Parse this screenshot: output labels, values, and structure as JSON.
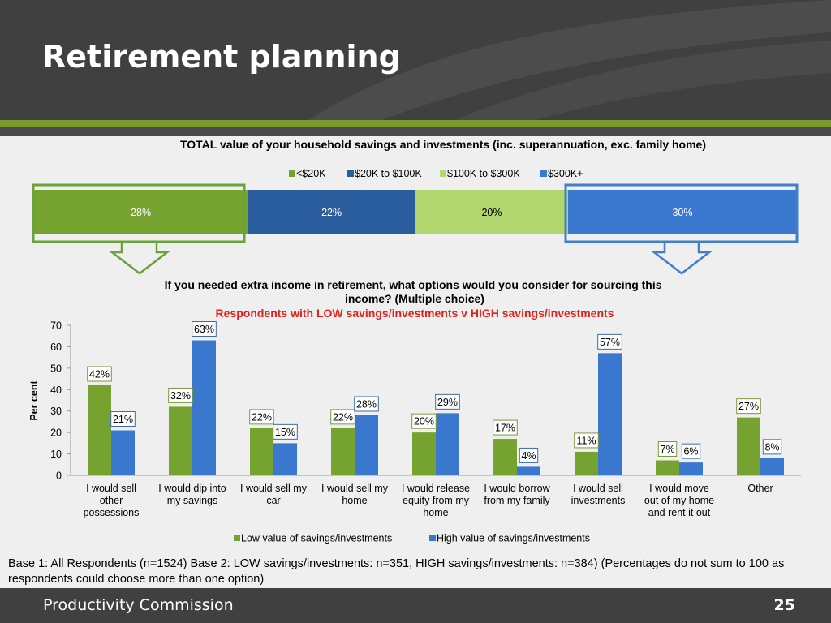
{
  "slide": {
    "title": "Retirement planning",
    "footer_left": "Productivity Commission",
    "page_number": "25",
    "base_note": "Base 1: All Respondents (n=1524)   Base 2: LOW savings/investments: n=351, HIGH savings/investments: n=384) (Percentages do not sum to 100 as respondents could choose more than one option)"
  },
  "colors": {
    "low": "#76a22f",
    "high": "#3a78d0",
    "dark_blue": "#2a5d9e",
    "light_green": "#b2d76e",
    "subtitle_red": "#e0201b"
  },
  "chart_data": [
    {
      "type": "bar",
      "stacked": true,
      "orientation": "horizontal",
      "title": "TOTAL value of your household savings and investments (inc. superannuation, exc. family home)",
      "legend_position": "top",
      "series": [
        {
          "name": "<$20K",
          "value": 28,
          "label": "28%",
          "color": "#76a22f"
        },
        {
          "name": "$20K to $100K",
          "value": 22,
          "label": "22%",
          "color": "#2a5d9e"
        },
        {
          "name": "$100K to $300K",
          "value": 20,
          "label": "20%",
          "color": "#b2d76e"
        },
        {
          "name": "$300K+",
          "value": 30,
          "label": "30%",
          "color": "#3a78d0"
        }
      ]
    },
    {
      "type": "bar",
      "title": "If you needed extra income in retirement, what options would you consider for sourcing this income? (Multiple choice)",
      "subtitle": "Respondents with LOW savings/investments v HIGH savings/investments",
      "ylabel": "Per cent",
      "ylim": [
        0,
        70
      ],
      "yticks": [
        0,
        10,
        20,
        30,
        40,
        50,
        60,
        70
      ],
      "legend_position": "bottom",
      "categories": [
        [
          "I would sell",
          "other",
          "possessions"
        ],
        [
          "I would dip into",
          "my savings"
        ],
        [
          "I would sell my",
          "car"
        ],
        [
          "I would sell my",
          "home"
        ],
        [
          "I would release",
          "equity from my",
          "home"
        ],
        [
          "I would borrow",
          "from my family"
        ],
        [
          "I would sell",
          "investments"
        ],
        [
          "I would move",
          "out of my home",
          "and rent it out"
        ],
        [
          "Other"
        ]
      ],
      "series": [
        {
          "name": "Low value of savings/investments",
          "values": [
            42,
            32,
            22,
            22,
            20,
            17,
            11,
            7,
            27
          ],
          "labels": [
            "42%",
            "32%",
            "22%",
            "22%",
            "20%",
            "17%",
            "11%",
            "7%",
            "27%"
          ]
        },
        {
          "name": "High value of savings/investments",
          "values": [
            21,
            63,
            15,
            28,
            29,
            4,
            57,
            6,
            8
          ],
          "labels": [
            "21%",
            "63%",
            "15%",
            "28%",
            "29%",
            "4%",
            "57%",
            "6%",
            "8%"
          ]
        }
      ]
    }
  ]
}
